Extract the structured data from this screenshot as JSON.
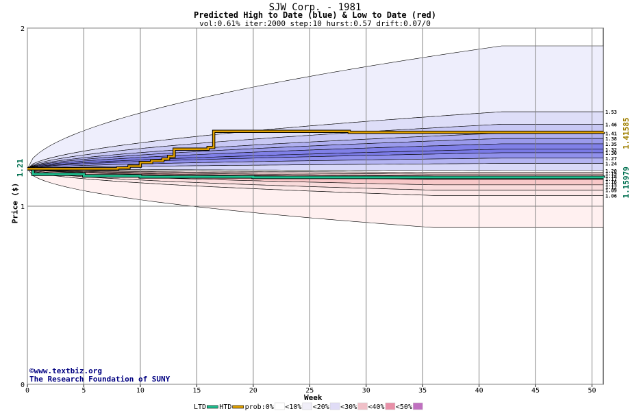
{
  "header": {
    "title": "SJW Corp. - 1981",
    "subtitle": "Predicted High to Date (blue) &  Low to Date (red)",
    "params": "vol:0.61% iter:2000 step:10 hurst:0.57 drift:0.07/0"
  },
  "credits": {
    "line1": "©www.textbiz.org",
    "line2": "The Research Foundation of SUNY"
  },
  "colors": {
    "grid": "#808080",
    "htd": "#e0a000",
    "ltd": "#20c090",
    "current": "#007050",
    "high_end": "#a08000"
  },
  "chart_data": {
    "type": "area",
    "xlabel": "Week",
    "ylabel": "Price ($)",
    "xlim": [
      0,
      51
    ],
    "ylim": [
      0,
      2
    ],
    "x_ticks": [
      0,
      5,
      10,
      15,
      20,
      25,
      30,
      35,
      40,
      45,
      50
    ],
    "y_ticks": [
      0,
      1,
      2
    ],
    "start_price": 1.21,
    "start_label": "1.21",
    "upper_band_labels": [
      "1.53",
      "1.46",
      "1.41",
      "1.38",
      "1.35",
      "1.32",
      "1.30",
      "1.27",
      "1.24",
      "1.20"
    ],
    "upper_band_values": [
      1.53,
      1.46,
      1.41,
      1.38,
      1.35,
      1.32,
      1.3,
      1.27,
      1.24,
      1.2
    ],
    "lower_band_labels": [
      "1.19",
      "1.18",
      "1.17",
      "1.16",
      "1.15",
      "1.12",
      "1.09",
      "1.06"
    ],
    "lower_band_values": [
      1.19,
      1.18,
      1.17,
      1.16,
      1.15,
      1.12,
      1.09,
      1.06
    ],
    "high_max": 1.9,
    "low_min": 0.88,
    "high_to_date": {
      "name": "HTD",
      "end_label": "1.41585",
      "points": [
        [
          0,
          1.21
        ],
        [
          6,
          1.21
        ],
        [
          8,
          1.215
        ],
        [
          9,
          1.225
        ],
        [
          10,
          1.245
        ],
        [
          11,
          1.255
        ],
        [
          12,
          1.265
        ],
        [
          12.5,
          1.28
        ],
        [
          13,
          1.32
        ],
        [
          16,
          1.33
        ],
        [
          16.5,
          1.42
        ],
        [
          27,
          1.42
        ],
        [
          28.5,
          1.415
        ],
        [
          51,
          1.41585
        ]
      ]
    },
    "low_to_date": {
      "name": "LTD",
      "end_label": "1.15979",
      "points": [
        [
          0,
          1.21
        ],
        [
          0.5,
          1.18
        ],
        [
          5,
          1.17
        ],
        [
          10,
          1.165
        ],
        [
          20,
          1.162
        ],
        [
          51,
          1.15979
        ]
      ]
    },
    "legend": {
      "items": [
        "LTD",
        "HTD",
        "prob:0%",
        "<10%",
        "<20%",
        "<30%",
        "<40%",
        "<50%"
      ],
      "placement": "bottom"
    }
  }
}
